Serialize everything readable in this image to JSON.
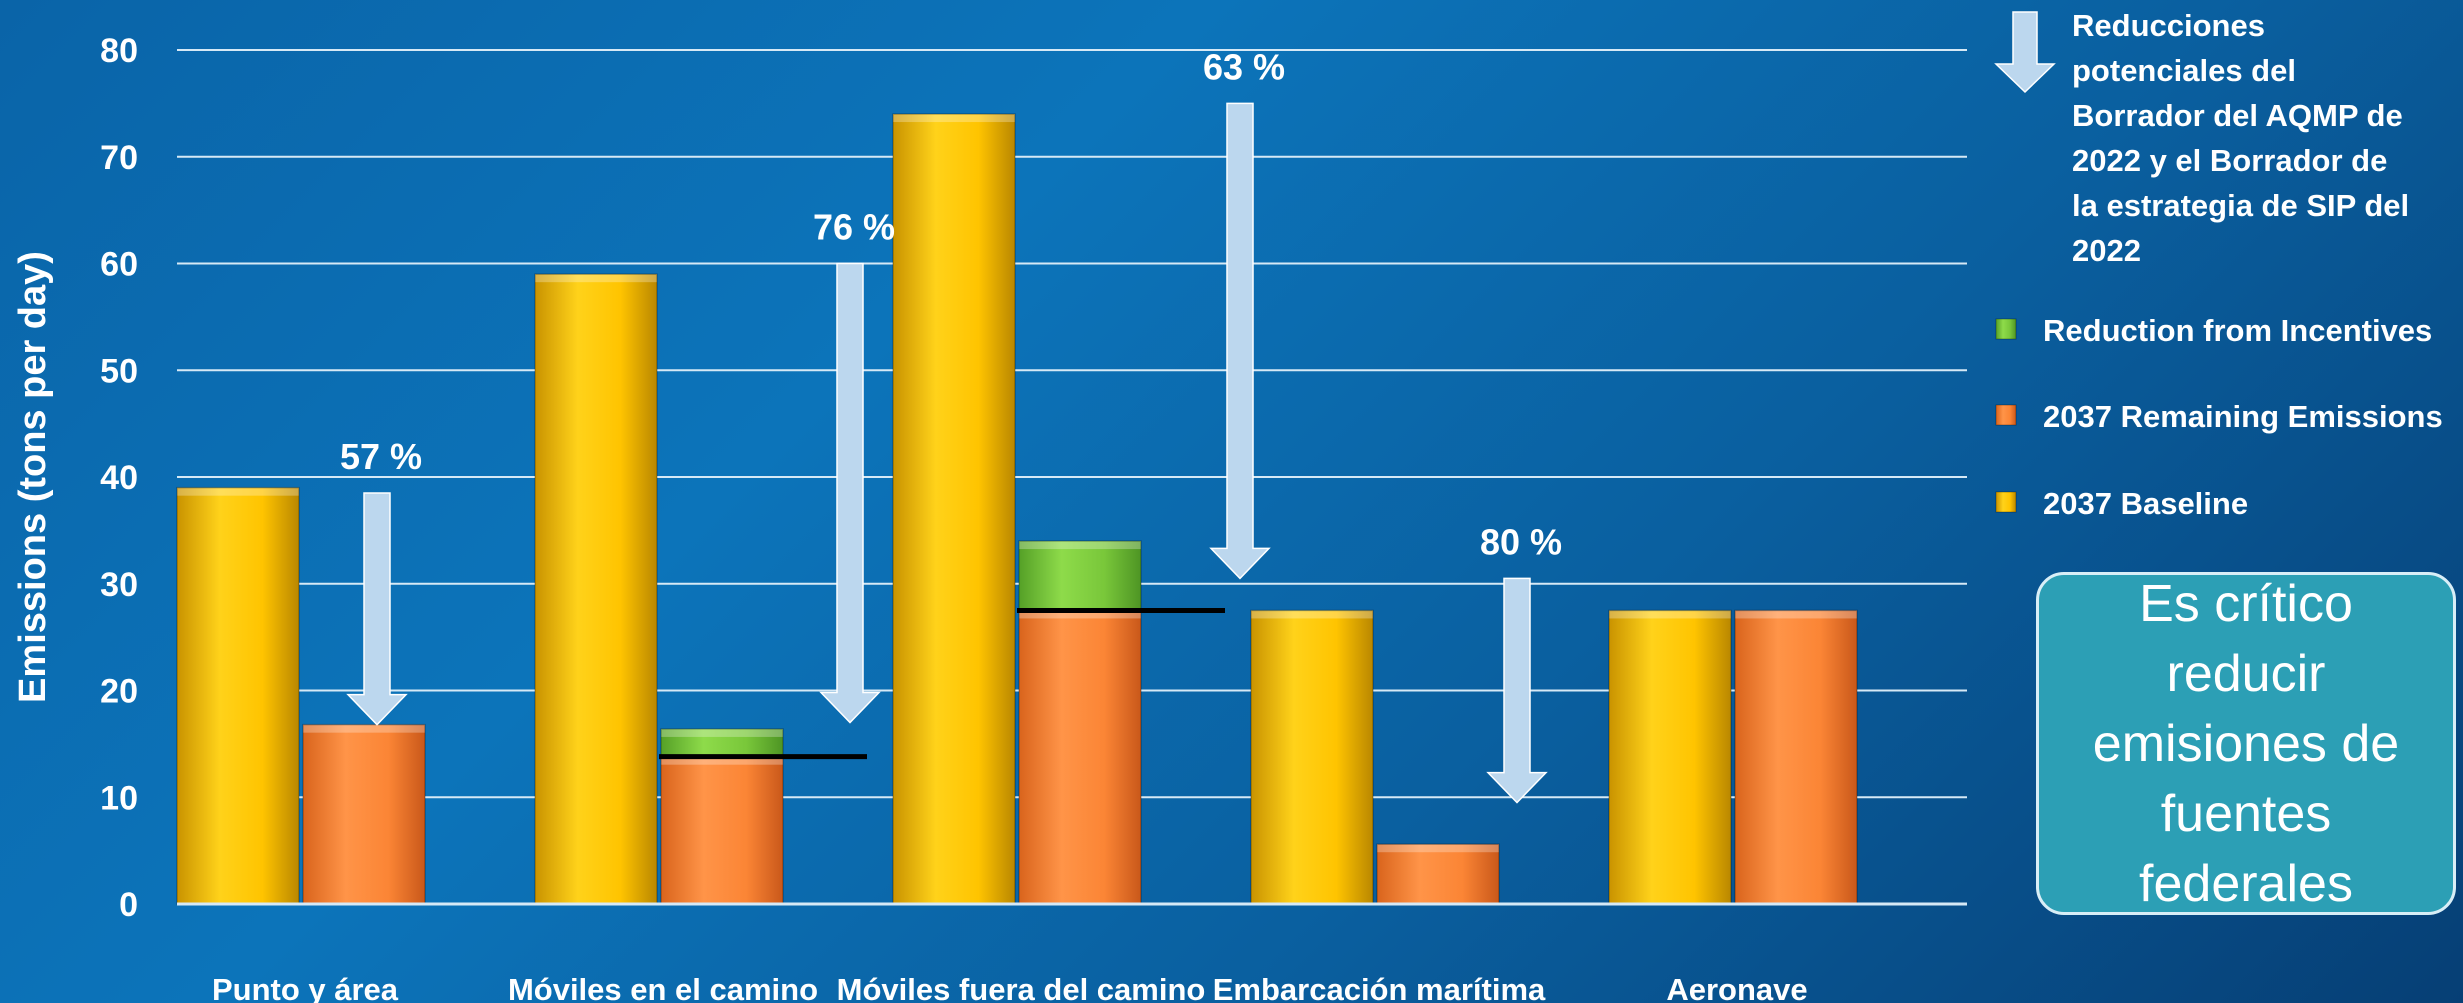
{
  "chart_data": {
    "type": "bar",
    "title": "",
    "xlabel": "",
    "ylabel": "Emissions (tons per day)",
    "ylim": [
      0,
      80
    ],
    "yticks": [
      0,
      10,
      20,
      30,
      40,
      50,
      60,
      70,
      80
    ],
    "grid": true,
    "categories": [
      "Punto y área",
      "Móviles en el camino",
      "Móviles fuera del camino",
      "Embarcación marítima",
      "Aeronave"
    ],
    "series": [
      {
        "name": "2037 Baseline",
        "color": "#ffc800",
        "values": [
          39,
          59,
          74,
          27.5,
          27.5
        ]
      },
      {
        "name": "2037 Remaining Emissions",
        "color": "#fb8535",
        "values": [
          16.8,
          13.8,
          27.5,
          5.6,
          27.5
        ]
      },
      {
        "name": "Reduction from Incentives",
        "color": "#79c73a",
        "values": [
          0,
          2.6,
          6.5,
          0,
          0
        ]
      }
    ],
    "reductions": [
      {
        "label": "57 %",
        "from": 38.5,
        "to": 16.8
      },
      {
        "label": "76 %",
        "from": 60,
        "to": 17.0
      },
      {
        "label": "63 %",
        "from": 75,
        "to": 30.5
      },
      {
        "label": "80 %",
        "from": 30.5,
        "to": 9.5
      },
      null
    ],
    "reference_lines": [
      13.8,
      27.5
    ],
    "legend": {
      "placement": "right",
      "items": [
        {
          "type": "arrow",
          "text": "Reducciones potenciales del Borrador del AQMP de 2022 y el Borrador de la estrategia de SIP del 2022"
        },
        {
          "type": "box",
          "series": 2,
          "text": "Reduction from Incentives"
        },
        {
          "type": "box",
          "series": 1,
          "text": "2037 Remaining Emissions"
        },
        {
          "type": "box",
          "series": 0,
          "text": "2037 Baseline"
        }
      ]
    }
  },
  "callout": {
    "text": "Es crítico reducir emisiones de fuentes federales"
  },
  "colors": {
    "grid": "#d6e9f6",
    "arrow": "#bcd7ee",
    "text": "#ffffff",
    "callout_bg": "#2c9fb5"
  }
}
